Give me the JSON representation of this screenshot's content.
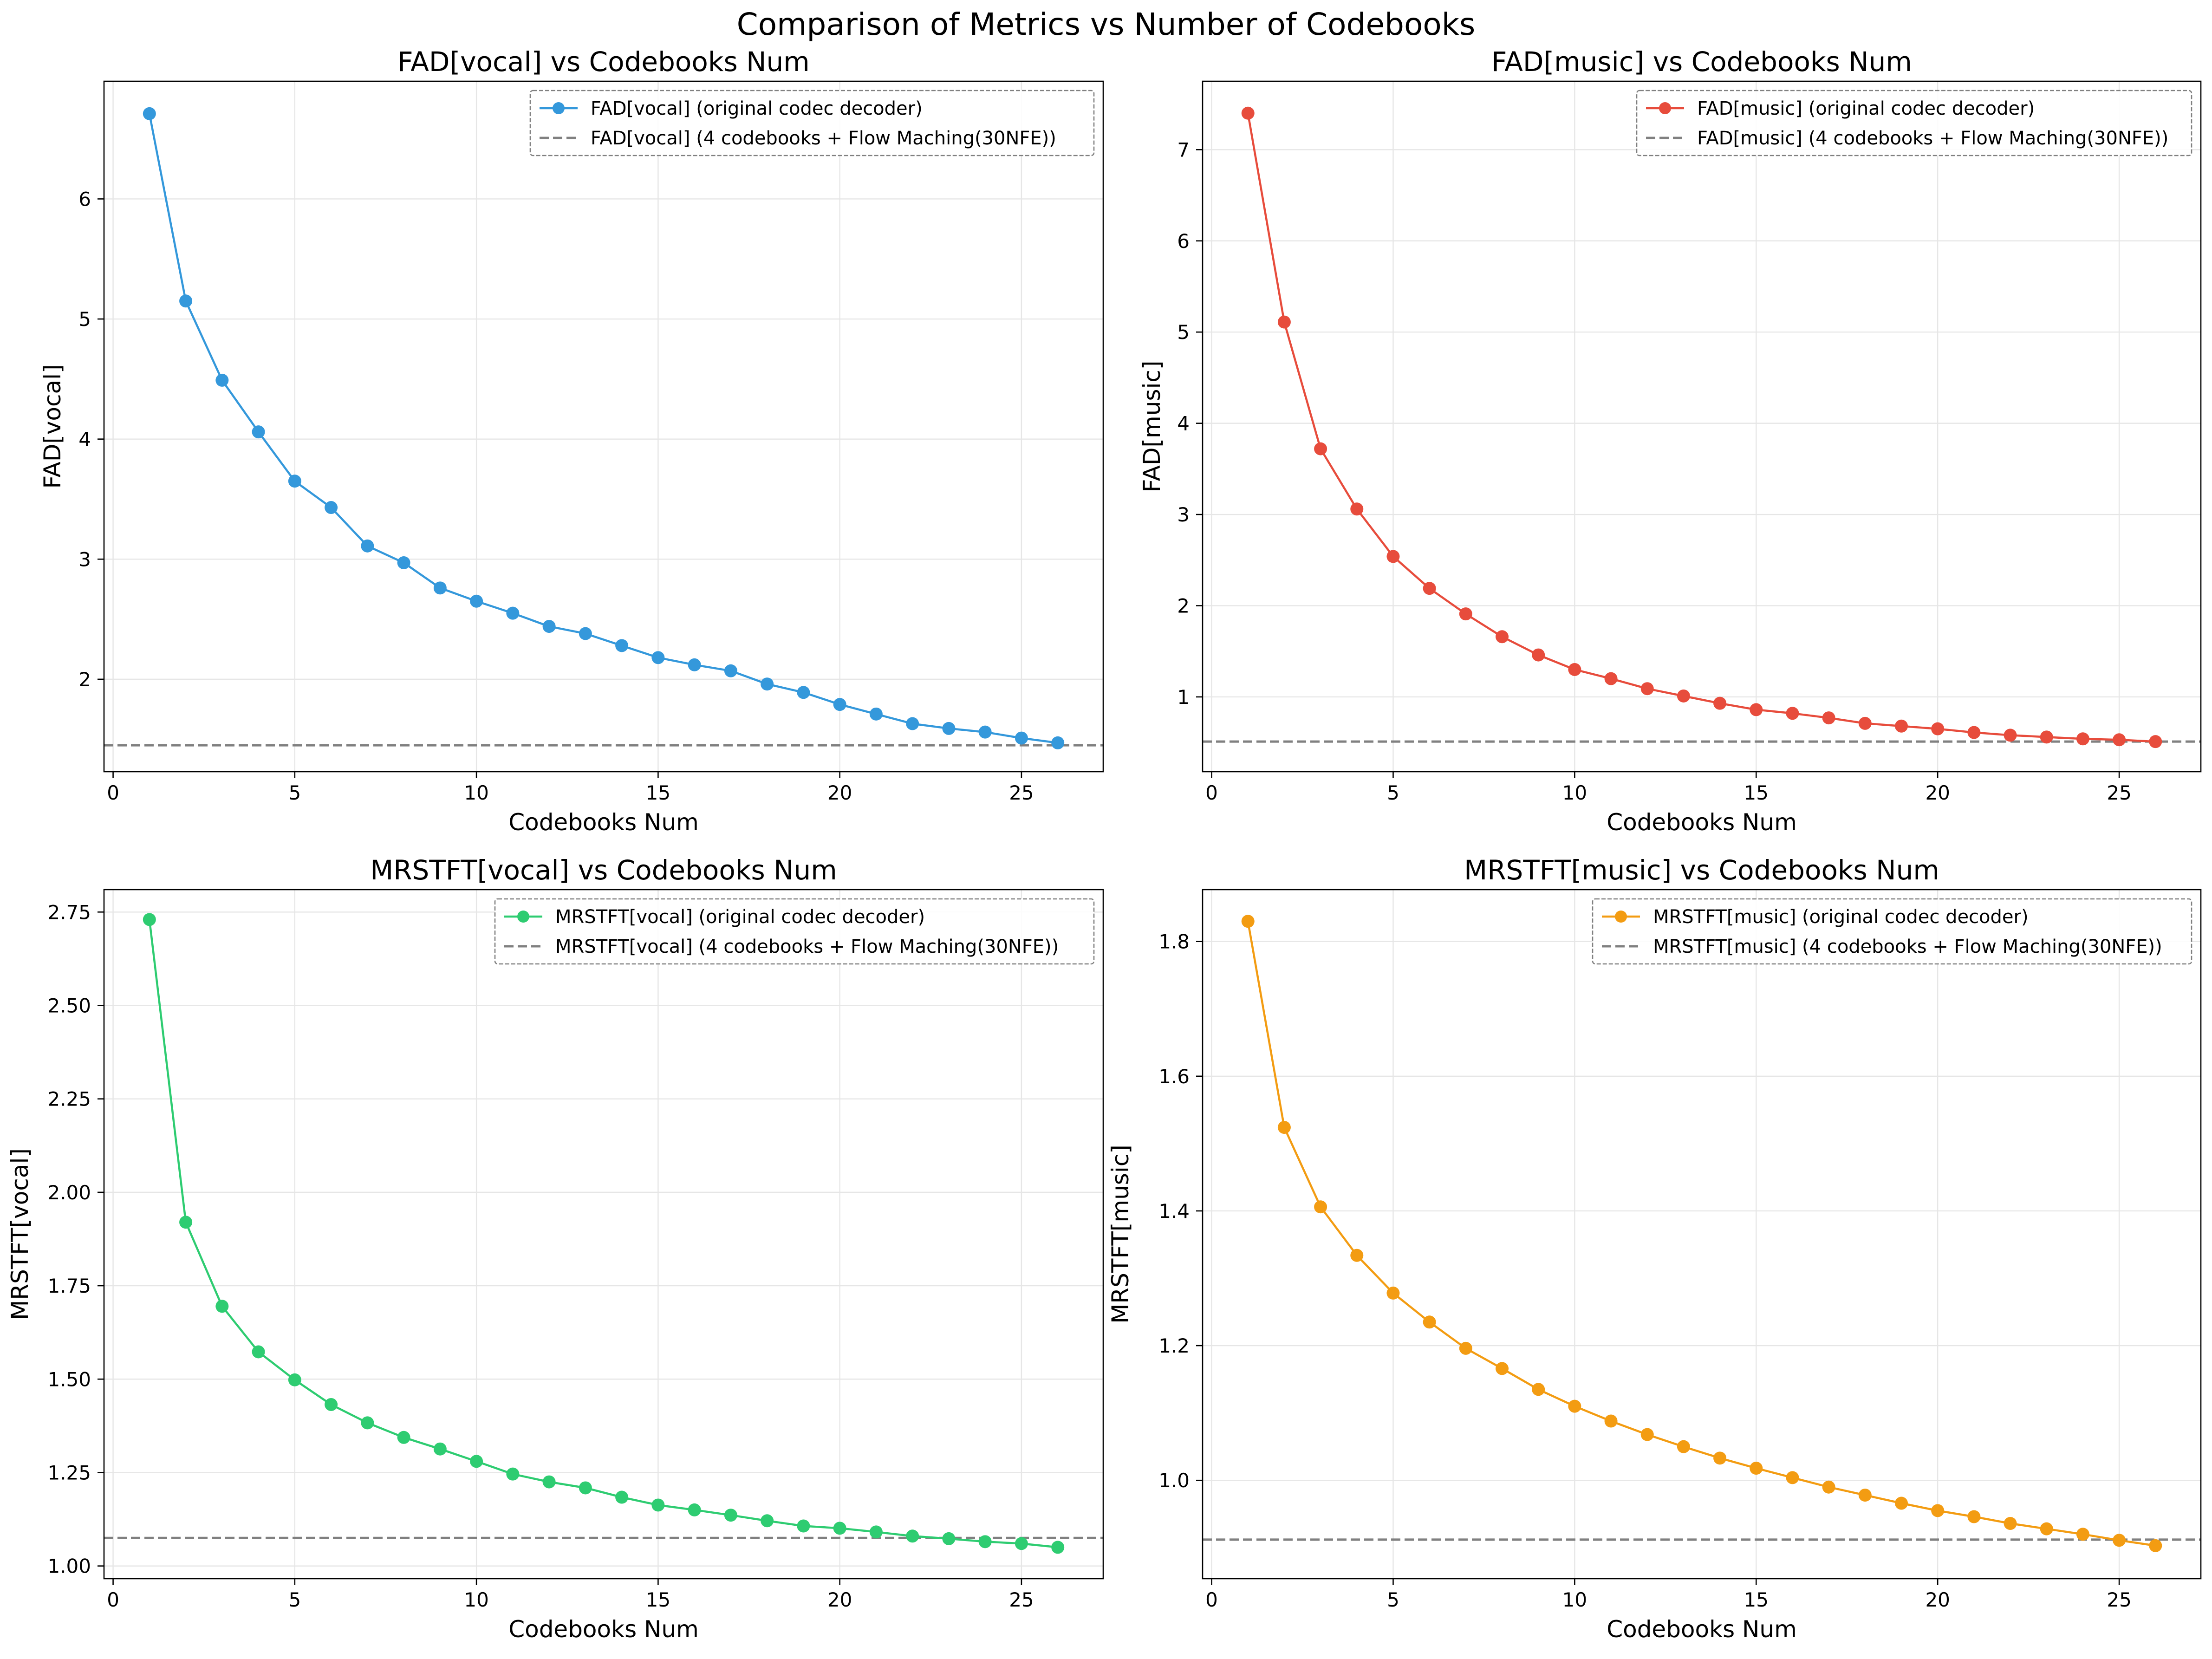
{
  "figure_title": "Comparison of Metrics vs Number of Codebooks",
  "colors": {
    "vocal_fad": "#3498db",
    "music_fad": "#e74c3c",
    "vocal_mrstft": "#2ecc71",
    "music_mrstft": "#f39c12",
    "baseline": "#808080",
    "grid": "#e6e6e6"
  },
  "chart_data": [
    {
      "type": "line",
      "title": "FAD[vocal] vs Codebooks Num",
      "xlabel": "Codebooks Num",
      "ylabel": "FAD[vocal]",
      "xlim": [
        -0.25,
        27.25
      ],
      "ylim": [
        1.23,
        6.98
      ],
      "xticks": [
        0,
        5,
        10,
        15,
        20,
        25
      ],
      "yticks": [
        2,
        3,
        4,
        5,
        6
      ],
      "ytick_labels": [
        "2",
        "3",
        "4",
        "5",
        "6"
      ],
      "grid": true,
      "legend_position": "upper right",
      "x": [
        1,
        2,
        3,
        4,
        5,
        6,
        7,
        8,
        9,
        10,
        11,
        12,
        13,
        14,
        15,
        16,
        17,
        18,
        19,
        20,
        21,
        22,
        23,
        24,
        25,
        26
      ],
      "series": [
        {
          "name": "FAD[vocal] (original codec decoder)",
          "style": "line-marker",
          "color_key": "vocal_fad",
          "values": [
            6.71,
            5.15,
            4.49,
            4.06,
            3.65,
            3.43,
            3.11,
            2.97,
            2.76,
            2.65,
            2.55,
            2.44,
            2.38,
            2.28,
            2.18,
            2.12,
            2.07,
            1.96,
            1.89,
            1.79,
            1.71,
            1.63,
            1.59,
            1.56,
            1.51,
            1.47
          ]
        }
      ],
      "baseline": {
        "name": "FAD[vocal] (4 codebooks + Flow Maching(30NFE))",
        "value": 1.45,
        "color_key": "baseline"
      }
    },
    {
      "type": "line",
      "title": "FAD[music] vs Codebooks Num",
      "xlabel": "Codebooks Num",
      "ylabel": "FAD[music]",
      "xlim": [
        -0.25,
        27.25
      ],
      "ylim": [
        0.18,
        7.75
      ],
      "xticks": [
        0,
        5,
        10,
        15,
        20,
        25
      ],
      "yticks": [
        1,
        2,
        3,
        4,
        5,
        6,
        7
      ],
      "ytick_labels": [
        "1",
        "2",
        "3",
        "4",
        "5",
        "6",
        "7"
      ],
      "grid": true,
      "legend_position": "upper right",
      "x": [
        1,
        2,
        3,
        4,
        5,
        6,
        7,
        8,
        9,
        10,
        11,
        12,
        13,
        14,
        15,
        16,
        17,
        18,
        19,
        20,
        21,
        22,
        23,
        24,
        25,
        26
      ],
      "series": [
        {
          "name": "FAD[music] (original codec decoder)",
          "style": "line-marker",
          "color_key": "music_fad",
          "values": [
            7.4,
            5.11,
            3.72,
            3.06,
            2.54,
            2.19,
            1.91,
            1.66,
            1.46,
            1.3,
            1.2,
            1.09,
            1.01,
            0.93,
            0.86,
            0.82,
            0.77,
            0.71,
            0.68,
            0.65,
            0.61,
            0.58,
            0.56,
            0.54,
            0.53,
            0.51
          ]
        }
      ],
      "baseline": {
        "name": "FAD[music] (4 codebooks + Flow Maching(30NFE))",
        "value": 0.51,
        "color_key": "baseline"
      }
    },
    {
      "type": "line",
      "title": "MRSTFT[vocal] vs Codebooks Num",
      "xlabel": "Codebooks Num",
      "ylabel": "MRSTFT[vocal]",
      "xlim": [
        -0.25,
        27.25
      ],
      "ylim": [
        0.966,
        2.81
      ],
      "xticks": [
        0,
        5,
        10,
        15,
        20,
        25
      ],
      "yticks": [
        1.0,
        1.25,
        1.5,
        1.75,
        2.0,
        2.25,
        2.5,
        2.75
      ],
      "ytick_labels": [
        "1.00",
        "1.25",
        "1.50",
        "1.75",
        "2.00",
        "2.25",
        "2.50",
        "2.75"
      ],
      "grid": true,
      "legend_position": "upper right",
      "x": [
        1,
        2,
        3,
        4,
        5,
        6,
        7,
        8,
        9,
        10,
        11,
        12,
        13,
        14,
        15,
        16,
        17,
        18,
        19,
        20,
        21,
        22,
        23,
        24,
        25,
        26
      ],
      "series": [
        {
          "name": "MRSTFT[vocal] (original codec decoder)",
          "style": "line-marker",
          "color_key": "vocal_mrstft",
          "values": [
            2.73,
            1.92,
            1.695,
            1.573,
            1.498,
            1.432,
            1.383,
            1.344,
            1.313,
            1.28,
            1.246,
            1.225,
            1.209,
            1.184,
            1.163,
            1.15,
            1.136,
            1.121,
            1.107,
            1.101,
            1.091,
            1.08,
            1.073,
            1.065,
            1.06,
            1.05
          ]
        }
      ],
      "baseline": {
        "name": "MRSTFT[vocal] (4 codebooks + Flow Maching(30NFE))",
        "value": 1.075,
        "color_key": "baseline"
      }
    },
    {
      "type": "line",
      "title": "MRSTFT[music] vs Codebooks Num",
      "xlabel": "Codebooks Num",
      "ylabel": "MRSTFT[music]",
      "xlim": [
        -0.25,
        27.25
      ],
      "ylim": [
        0.854,
        1.877
      ],
      "xticks": [
        0,
        5,
        10,
        15,
        20,
        25
      ],
      "yticks": [
        1.0,
        1.2,
        1.4,
        1.6,
        1.8
      ],
      "ytick_labels": [
        "1.0",
        "1.2",
        "1.4",
        "1.6",
        "1.8"
      ],
      "grid": true,
      "legend_position": "upper right",
      "x": [
        1,
        2,
        3,
        4,
        5,
        6,
        7,
        8,
        9,
        10,
        11,
        12,
        13,
        14,
        15,
        16,
        17,
        18,
        19,
        20,
        21,
        22,
        23,
        24,
        25,
        26
      ],
      "series": [
        {
          "name": "MRSTFT[music] (original codec decoder)",
          "style": "line-marker",
          "color_key": "music_mrstft",
          "values": [
            1.83,
            1.524,
            1.406,
            1.334,
            1.278,
            1.235,
            1.196,
            1.166,
            1.135,
            1.11,
            1.088,
            1.068,
            1.05,
            1.033,
            1.018,
            1.004,
            0.99,
            0.978,
            0.966,
            0.955,
            0.946,
            0.936,
            0.928,
            0.92,
            0.911,
            0.903
          ]
        }
      ],
      "baseline": {
        "name": "MRSTFT[music] (4 codebooks + Flow Maching(30NFE))",
        "value": 0.912,
        "color_key": "baseline"
      }
    }
  ]
}
